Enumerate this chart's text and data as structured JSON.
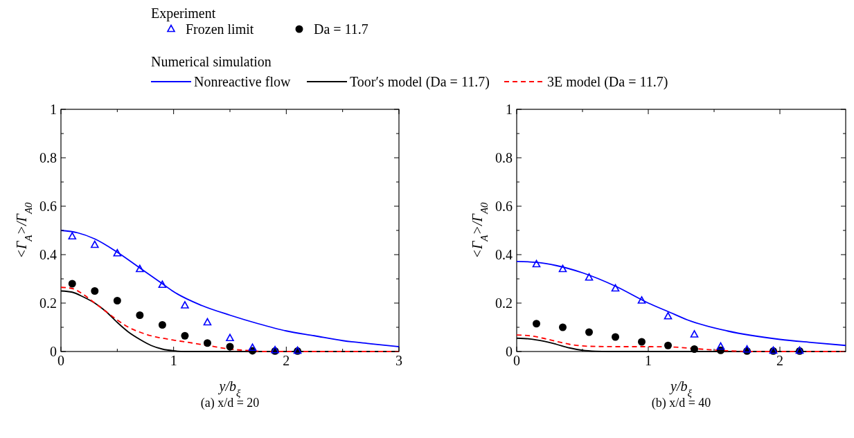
{
  "chart_data": [
    {
      "type": "line",
      "title": "(a) x/d = 20",
      "xlabel": "y/b$_{ξ}$",
      "ylabel": "<Γ$_{A}$>/Γ$_{A0}$",
      "legend": "top",
      "annotations": [
        "Experiment",
        "Numerical simulation"
      ],
      "xlim": [
        0,
        3
      ],
      "xticks": [
        0,
        {
          "value": 0.5,
          "label": null
        },
        1,
        {
          "value": 1.5,
          "label": null
        },
        2,
        {
          "value": 2.5,
          "label": null
        },
        3
      ],
      "ylim": [
        0,
        1
      ],
      "yticks": [
        0,
        {
          "value": 0.1,
          "label": null
        },
        0.2,
        {
          "value": 0.3,
          "label": null
        },
        0.4,
        {
          "value": 0.5,
          "label": null
        },
        0.6,
        {
          "value": 0.7,
          "label": null
        },
        0.8,
        {
          "value": 0.9,
          "label": null
        },
        1
      ],
      "series": [
        {
          "name": "Frozen limit",
          "type": "scatter",
          "marker": "triangle",
          "color": "#0000ff",
          "x": [
            0.1,
            0.3,
            0.5,
            0.7,
            0.9,
            1.1,
            1.3,
            1.5,
            1.7,
            1.9,
            2.1
          ],
          "values": [
            0.475,
            0.44,
            0.405,
            0.34,
            0.275,
            0.19,
            0.12,
            0.055,
            0.015,
            0.005,
            0.003
          ]
        },
        {
          "name": "Da = 11.7",
          "type": "scatter",
          "marker": "circle",
          "color": "#000000",
          "x": [
            0.1,
            0.3,
            0.5,
            0.7,
            0.9,
            1.1,
            1.3,
            1.5,
            1.7,
            1.9,
            2.1
          ],
          "values": [
            0.28,
            0.25,
            0.21,
            0.15,
            0.11,
            0.065,
            0.035,
            0.02,
            0.003,
            0.002,
            0.002
          ]
        },
        {
          "name": "Nonreactive flow",
          "type": "line",
          "line_style": "solid",
          "color": "#0000ff",
          "x": [
            0,
            0.15,
            0.3,
            0.5,
            0.7,
            0.9,
            1,
            1.25,
            1.5,
            1.75,
            2,
            2.25,
            2.5,
            2.75,
            3
          ],
          "values": [
            0.5,
            0.49,
            0.465,
            0.41,
            0.345,
            0.28,
            0.247,
            0.19,
            0.15,
            0.115,
            0.085,
            0.065,
            0.045,
            0.032,
            0.02
          ]
        },
        {
          "name": "Toor′s model (Da = 11.7)",
          "type": "line",
          "line_style": "solid",
          "color": "#000000",
          "x": [
            0,
            0.1,
            0.2,
            0.3,
            0.4,
            0.5,
            0.6,
            0.7,
            0.8,
            0.9,
            1,
            1.1,
            1.5,
            2,
            3
          ],
          "values": [
            0.25,
            0.245,
            0.225,
            0.2,
            0.165,
            0.12,
            0.08,
            0.05,
            0.025,
            0.01,
            0.003,
            0,
            0,
            0,
            0
          ]
        },
        {
          "name": "3E model (Da = 11.7)",
          "type": "line",
          "line_style": "dashed",
          "color": "#ff0000",
          "x": [
            0,
            0.1,
            0.2,
            0.3,
            0.4,
            0.5,
            0.6,
            0.7,
            0.8,
            0.9,
            1,
            1.1,
            1.3,
            1.5,
            1.7,
            1.8,
            2,
            3
          ],
          "values": [
            0.265,
            0.26,
            0.235,
            0.2,
            0.165,
            0.13,
            0.1,
            0.08,
            0.065,
            0.055,
            0.047,
            0.04,
            0.025,
            0.01,
            0.003,
            0,
            0,
            0
          ]
        }
      ]
    },
    {
      "type": "line",
      "title": "(b) x/d = 40",
      "xlabel": "y/b$_{ξ}$",
      "ylabel": "<Γ$_{A}$>/Γ$_{A0}$",
      "xlim": [
        0,
        2.5
      ],
      "xticks": [
        0,
        {
          "value": 0.5,
          "label": null
        },
        1,
        {
          "value": 1.5,
          "label": null
        },
        2
      ],
      "ylim": [
        0,
        1
      ],
      "yticks": [
        0,
        {
          "value": 0.1,
          "label": null
        },
        0.2,
        {
          "value": 0.3,
          "label": null
        },
        0.4,
        {
          "value": 0.5,
          "label": null
        },
        0.6,
        {
          "value": 0.7,
          "label": null
        },
        0.8,
        {
          "value": 0.9,
          "label": null
        },
        1
      ],
      "series": [
        {
          "type": "scatter",
          "marker": "triangle",
          "color": "#0000ff",
          "x": [
            0.15,
            0.35,
            0.55,
            0.75,
            0.95,
            1.15,
            1.35,
            1.55,
            1.75,
            1.95,
            2.15
          ],
          "values": [
            0.36,
            0.34,
            0.305,
            0.26,
            0.21,
            0.145,
            0.07,
            0.02,
            0.008,
            0.003,
            0.003
          ]
        },
        {
          "type": "scatter",
          "marker": "circle",
          "color": "#000000",
          "x": [
            0.15,
            0.35,
            0.55,
            0.75,
            0.95,
            1.15,
            1.35,
            1.55,
            1.75,
            1.95,
            2.15
          ],
          "values": [
            0.115,
            0.1,
            0.08,
            0.06,
            0.04,
            0.025,
            0.01,
            0.005,
            0.002,
            0.002,
            0.002
          ]
        },
        {
          "type": "line",
          "line_style": "solid",
          "color": "#0000ff",
          "x": [
            0,
            0.15,
            0.3,
            0.5,
            0.75,
            1,
            1.15,
            1.3,
            1.6,
            2,
            2.25,
            2.5
          ],
          "values": [
            0.372,
            0.368,
            0.355,
            0.325,
            0.27,
            0.2,
            0.165,
            0.13,
            0.085,
            0.05,
            0.037,
            0.025
          ]
        },
        {
          "type": "line",
          "line_style": "solid",
          "color": "#000000",
          "x": [
            0,
            0.1,
            0.2,
            0.3,
            0.4,
            0.5,
            0.6,
            0.7,
            1,
            2.5
          ],
          "values": [
            0.055,
            0.052,
            0.043,
            0.03,
            0.015,
            0.005,
            0.001,
            0,
            0,
            0
          ]
        },
        {
          "type": "line",
          "line_style": "dashed",
          "color": "#ff0000",
          "x": [
            0,
            0.1,
            0.2,
            0.3,
            0.4,
            0.5,
            0.6,
            0.8,
            1,
            1.2,
            1.4,
            1.6,
            1.8,
            2.5
          ],
          "values": [
            0.068,
            0.065,
            0.055,
            0.042,
            0.03,
            0.023,
            0.021,
            0.02,
            0.02,
            0.018,
            0.01,
            0.003,
            0,
            0
          ]
        }
      ]
    }
  ]
}
